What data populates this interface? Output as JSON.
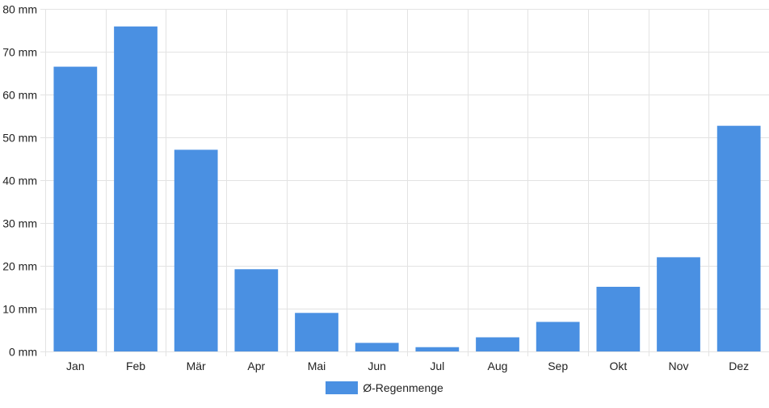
{
  "chart_data": {
    "type": "bar",
    "categories": [
      "Jan",
      "Feb",
      "Mär",
      "Apr",
      "Mai",
      "Jun",
      "Jul",
      "Aug",
      "Sep",
      "Okt",
      "Nov",
      "Dez"
    ],
    "series": [
      {
        "name": "Ø-Regenmenge",
        "values": [
          66.5,
          75.9,
          47.1,
          19.2,
          9.0,
          2.0,
          1.0,
          3.3,
          6.9,
          15.1,
          22.0,
          52.7
        ],
        "color": "#4a90e2"
      }
    ],
    "y_ticks": [
      "0 mm",
      "10 mm",
      "20 mm",
      "30 mm",
      "40 mm",
      "50 mm",
      "60 mm",
      "70 mm",
      "80 mm"
    ],
    "ylim": [
      0,
      80
    ],
    "y_unit": "mm",
    "grid": true,
    "legend_position": "bottom-center",
    "grid_color": "#e3e3e3"
  }
}
